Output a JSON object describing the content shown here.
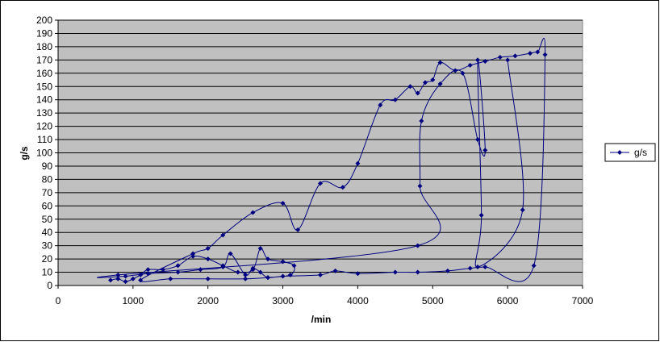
{
  "chart_data": {
    "type": "scatter",
    "x_label": "/min",
    "y_label": "g/s",
    "xlim": [
      0,
      7000
    ],
    "ylim": [
      0,
      200
    ],
    "xticks": [
      0,
      1000,
      2000,
      3000,
      4000,
      5000,
      6000,
      7000
    ],
    "yticks": [
      0,
      10,
      20,
      30,
      40,
      50,
      60,
      70,
      80,
      90,
      100,
      110,
      120,
      130,
      140,
      150,
      160,
      170,
      180,
      190,
      200
    ],
    "grid": true,
    "smooth": true,
    "plot_background": "#c0c0c0",
    "legend": "right",
    "series": [
      {
        "name": "g/s",
        "color": "#000080",
        "x": [
          700,
          800,
          900,
          1000,
          1100,
          1200,
          1400,
          1600,
          1800,
          2000,
          2200,
          2400,
          2600,
          2700,
          2800,
          3000,
          3150,
          3100,
          2800,
          2500,
          2000,
          1500,
          1100,
          1800,
          2000,
          2200,
          2600,
          3000,
          3200,
          3500,
          3800,
          4000,
          4300,
          4500,
          4700,
          4800,
          4900,
          5000,
          5100,
          5300,
          5500,
          5700,
          5900,
          6100,
          6300,
          6400,
          6500,
          6350,
          5700,
          5500,
          5200,
          4800,
          4500,
          4000,
          3700,
          3500,
          3000,
          2800,
          2700,
          2600,
          2500,
          2300,
          2200,
          1900,
          1600,
          1200,
          900,
          800,
          4800,
          4830,
          4850,
          5100,
          5400,
          5600,
          5700,
          5600,
          5650,
          5600,
          6200,
          6000
        ],
        "values": [
          4,
          5,
          3,
          5,
          8,
          12,
          12,
          15,
          22,
          20,
          15,
          10,
          12,
          28,
          20,
          18,
          15,
          8,
          6,
          5,
          5,
          5,
          4,
          24,
          28,
          38,
          55,
          62,
          42,
          77,
          74,
          92,
          136,
          140,
          150,
          145,
          153,
          155,
          168,
          162,
          166,
          169,
          172,
          173,
          175,
          176,
          174,
          15,
          14,
          13,
          11,
          10,
          10,
          9,
          11,
          8,
          7,
          6,
          10,
          13,
          8,
          24,
          14,
          12,
          10,
          9,
          7,
          8,
          30,
          75,
          124,
          152,
          160,
          110,
          102,
          170,
          53,
          14,
          57,
          170
        ]
      }
    ]
  }
}
